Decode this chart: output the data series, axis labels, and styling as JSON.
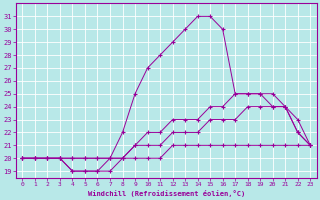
{
  "xlabel": "Windchill (Refroidissement éolien,°C)",
  "bg_color": "#b8e8e8",
  "line_color": "#990099",
  "grid_color": "#ffffff",
  "xlim": [
    -0.5,
    23.5
  ],
  "ylim": [
    18.5,
    32
  ],
  "yticks": [
    19,
    20,
    21,
    22,
    23,
    24,
    25,
    26,
    27,
    28,
    29,
    30,
    31
  ],
  "xticks": [
    0,
    1,
    2,
    3,
    4,
    5,
    6,
    7,
    8,
    9,
    10,
    11,
    12,
    13,
    14,
    15,
    16,
    17,
    18,
    19,
    20,
    21,
    22,
    23
  ],
  "curve1_x": [
    0,
    1,
    2,
    3,
    4,
    5,
    6,
    7,
    8,
    9,
    10,
    11,
    12,
    13,
    14,
    15,
    16,
    17,
    18,
    19,
    20,
    21,
    22,
    23
  ],
  "curve1_y": [
    20,
    20,
    20,
    20,
    19,
    19,
    19,
    20,
    22,
    25,
    27,
    28,
    29,
    30,
    31,
    31,
    30,
    25,
    25,
    25,
    25,
    24,
    22,
    21
  ],
  "curve2_x": [
    0,
    1,
    2,
    3,
    4,
    5,
    6,
    7,
    8,
    9,
    10,
    11,
    12,
    13,
    14,
    15,
    16,
    17,
    18,
    19,
    20,
    21,
    22,
    23
  ],
  "curve2_y": [
    20,
    20,
    20,
    20,
    19,
    19,
    19,
    19,
    20,
    21,
    22,
    22,
    23,
    23,
    23,
    24,
    24,
    25,
    25,
    25,
    24,
    24,
    22,
    21
  ],
  "curve3_x": [
    0,
    1,
    2,
    3,
    4,
    5,
    6,
    7,
    8,
    9,
    10,
    11,
    12,
    13,
    14,
    15,
    16,
    17,
    18,
    19,
    20,
    21,
    22,
    23
  ],
  "curve3_y": [
    20,
    20,
    20,
    20,
    20,
    20,
    20,
    20,
    20,
    21,
    21,
    21,
    22,
    22,
    22,
    23,
    23,
    23,
    24,
    24,
    24,
    24,
    23,
    21
  ],
  "curve4_x": [
    0,
    1,
    2,
    3,
    4,
    5,
    6,
    7,
    8,
    9,
    10,
    11,
    12,
    13,
    14,
    15,
    16,
    17,
    18,
    19,
    20,
    21,
    22,
    23
  ],
  "curve4_y": [
    20,
    20,
    20,
    20,
    20,
    20,
    20,
    20,
    20,
    20,
    20,
    20,
    21,
    21,
    21,
    21,
    21,
    21,
    21,
    21,
    21,
    21,
    21,
    21
  ]
}
